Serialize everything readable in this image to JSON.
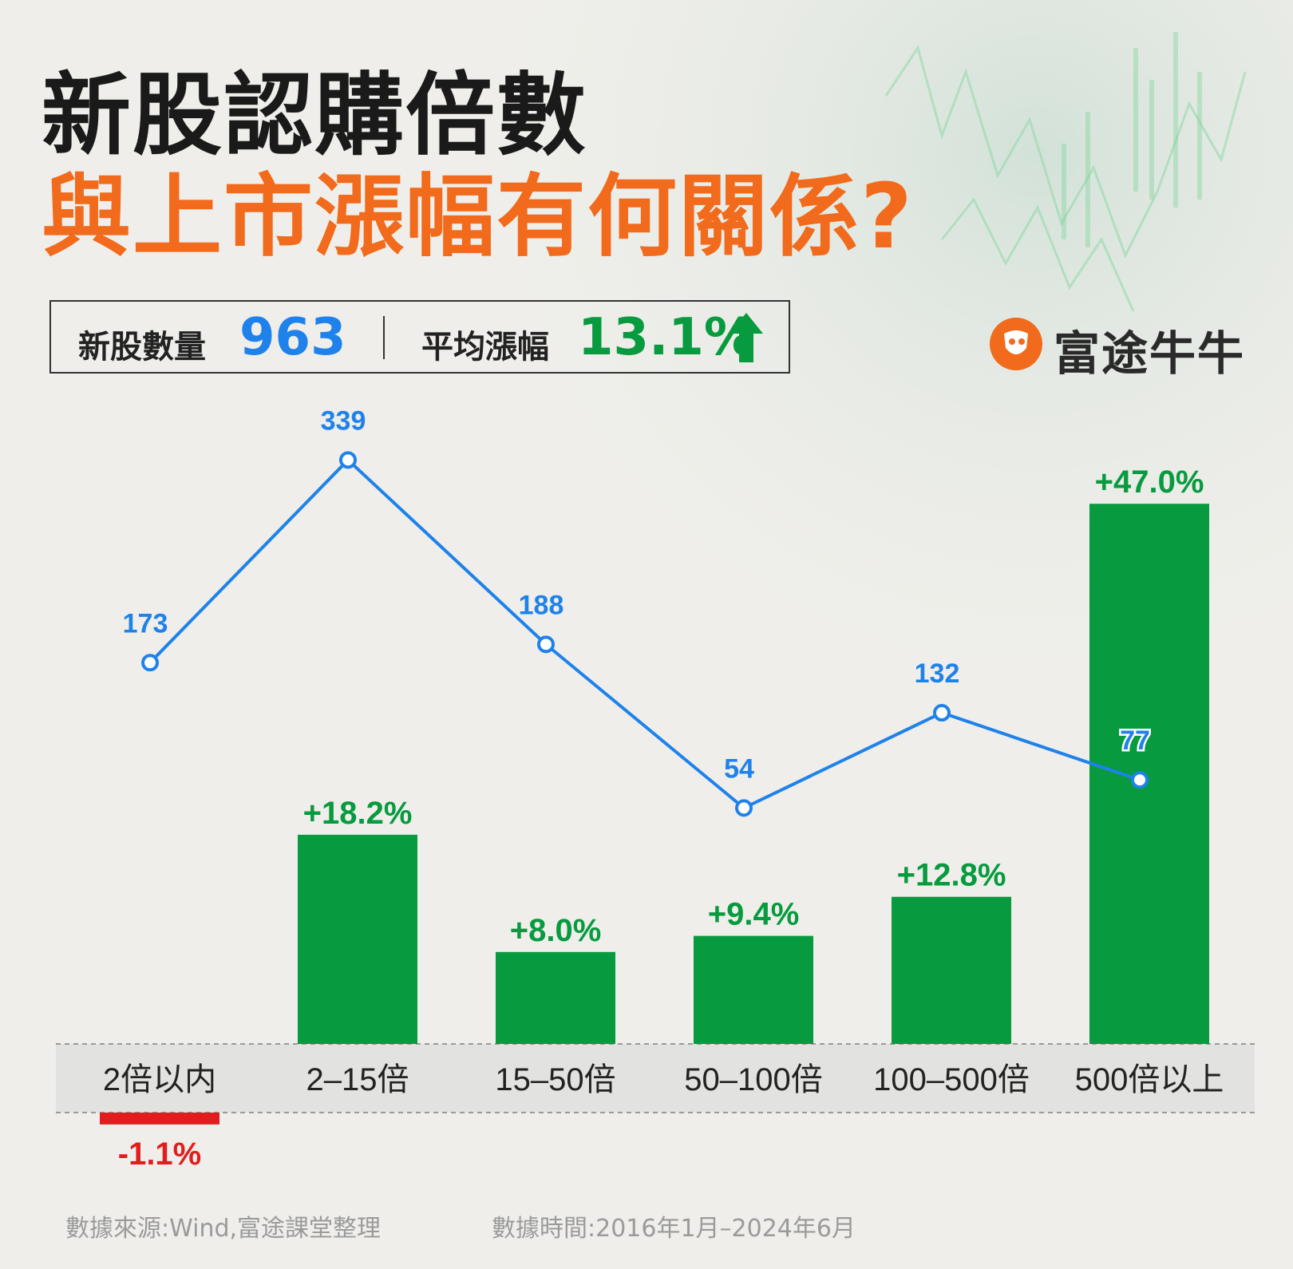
{
  "title": {
    "line1": "新股認購倍數",
    "line2": "與上市漲幅有何關係?"
  },
  "stats": {
    "count_label": "新股數量",
    "count_value": "963",
    "avg_label": "平均漲幅",
    "avg_value": "13.1%",
    "avg_direction": "up-arrow-icon"
  },
  "brand": {
    "name": "富途牛牛",
    "icon": "bull-logo-icon"
  },
  "colors": {
    "bar": "#079a3e",
    "bar_negative": "#e01e1e",
    "line": "#1e82ea",
    "title_accent": "#f26a1b",
    "value_blue": "#1e82ea",
    "value_green": "#079a3e"
  },
  "chart_data": {
    "type": "bar",
    "categories": [
      "2倍以内",
      "2–15倍",
      "15–50倍",
      "50–100倍",
      "100–500倍",
      "500倍以上"
    ],
    "series": [
      {
        "type": "bar",
        "values": [
          -1.1,
          18.2,
          8.0,
          9.4,
          12.8,
          47.0
        ],
        "labels": [
          "-1.1%",
          "+18.2%",
          "+8.0%",
          "+9.4%",
          "+12.8%",
          "+47.0%"
        ]
      },
      {
        "type": "line",
        "values": [
          173,
          339,
          188,
          54,
          132,
          77
        ],
        "labels": [
          "173",
          "339",
          "188",
          "54",
          "132",
          "77"
        ]
      }
    ],
    "grid": false,
    "legend": "none"
  },
  "footer": {
    "source": "數據來源:Wind,富途課堂整理",
    "period": "數據時間:2016年1月–2024年6月"
  }
}
